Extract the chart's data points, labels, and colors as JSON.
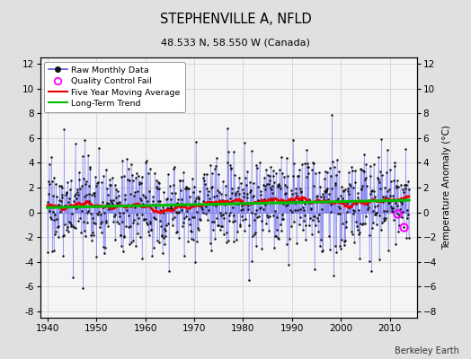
{
  "title": "STEPHENVILLE A, NFLD",
  "subtitle": "48.533 N, 58.550 W (Canada)",
  "ylabel": "Temperature Anomaly (°C)",
  "credit": "Berkeley Earth",
  "xlim": [
    1938.5,
    2015.5
  ],
  "ylim": [
    -8.5,
    12.5
  ],
  "yticks": [
    -8,
    -6,
    -4,
    -2,
    0,
    2,
    4,
    6,
    8,
    10,
    12
  ],
  "xticks": [
    1940,
    1950,
    1960,
    1970,
    1980,
    1990,
    2000,
    2010
  ],
  "bg_color": "#e0e0e0",
  "plot_bg_color": "#f5f5f5",
  "raw_line_color": "#5555ee",
  "raw_marker_color": "#111111",
  "moving_avg_color": "#ee0000",
  "trend_color": "#00bb00",
  "qc_fail_color": "#ff00ff",
  "seed": 17,
  "n_years_start": 1940,
  "n_years_end": 2014
}
